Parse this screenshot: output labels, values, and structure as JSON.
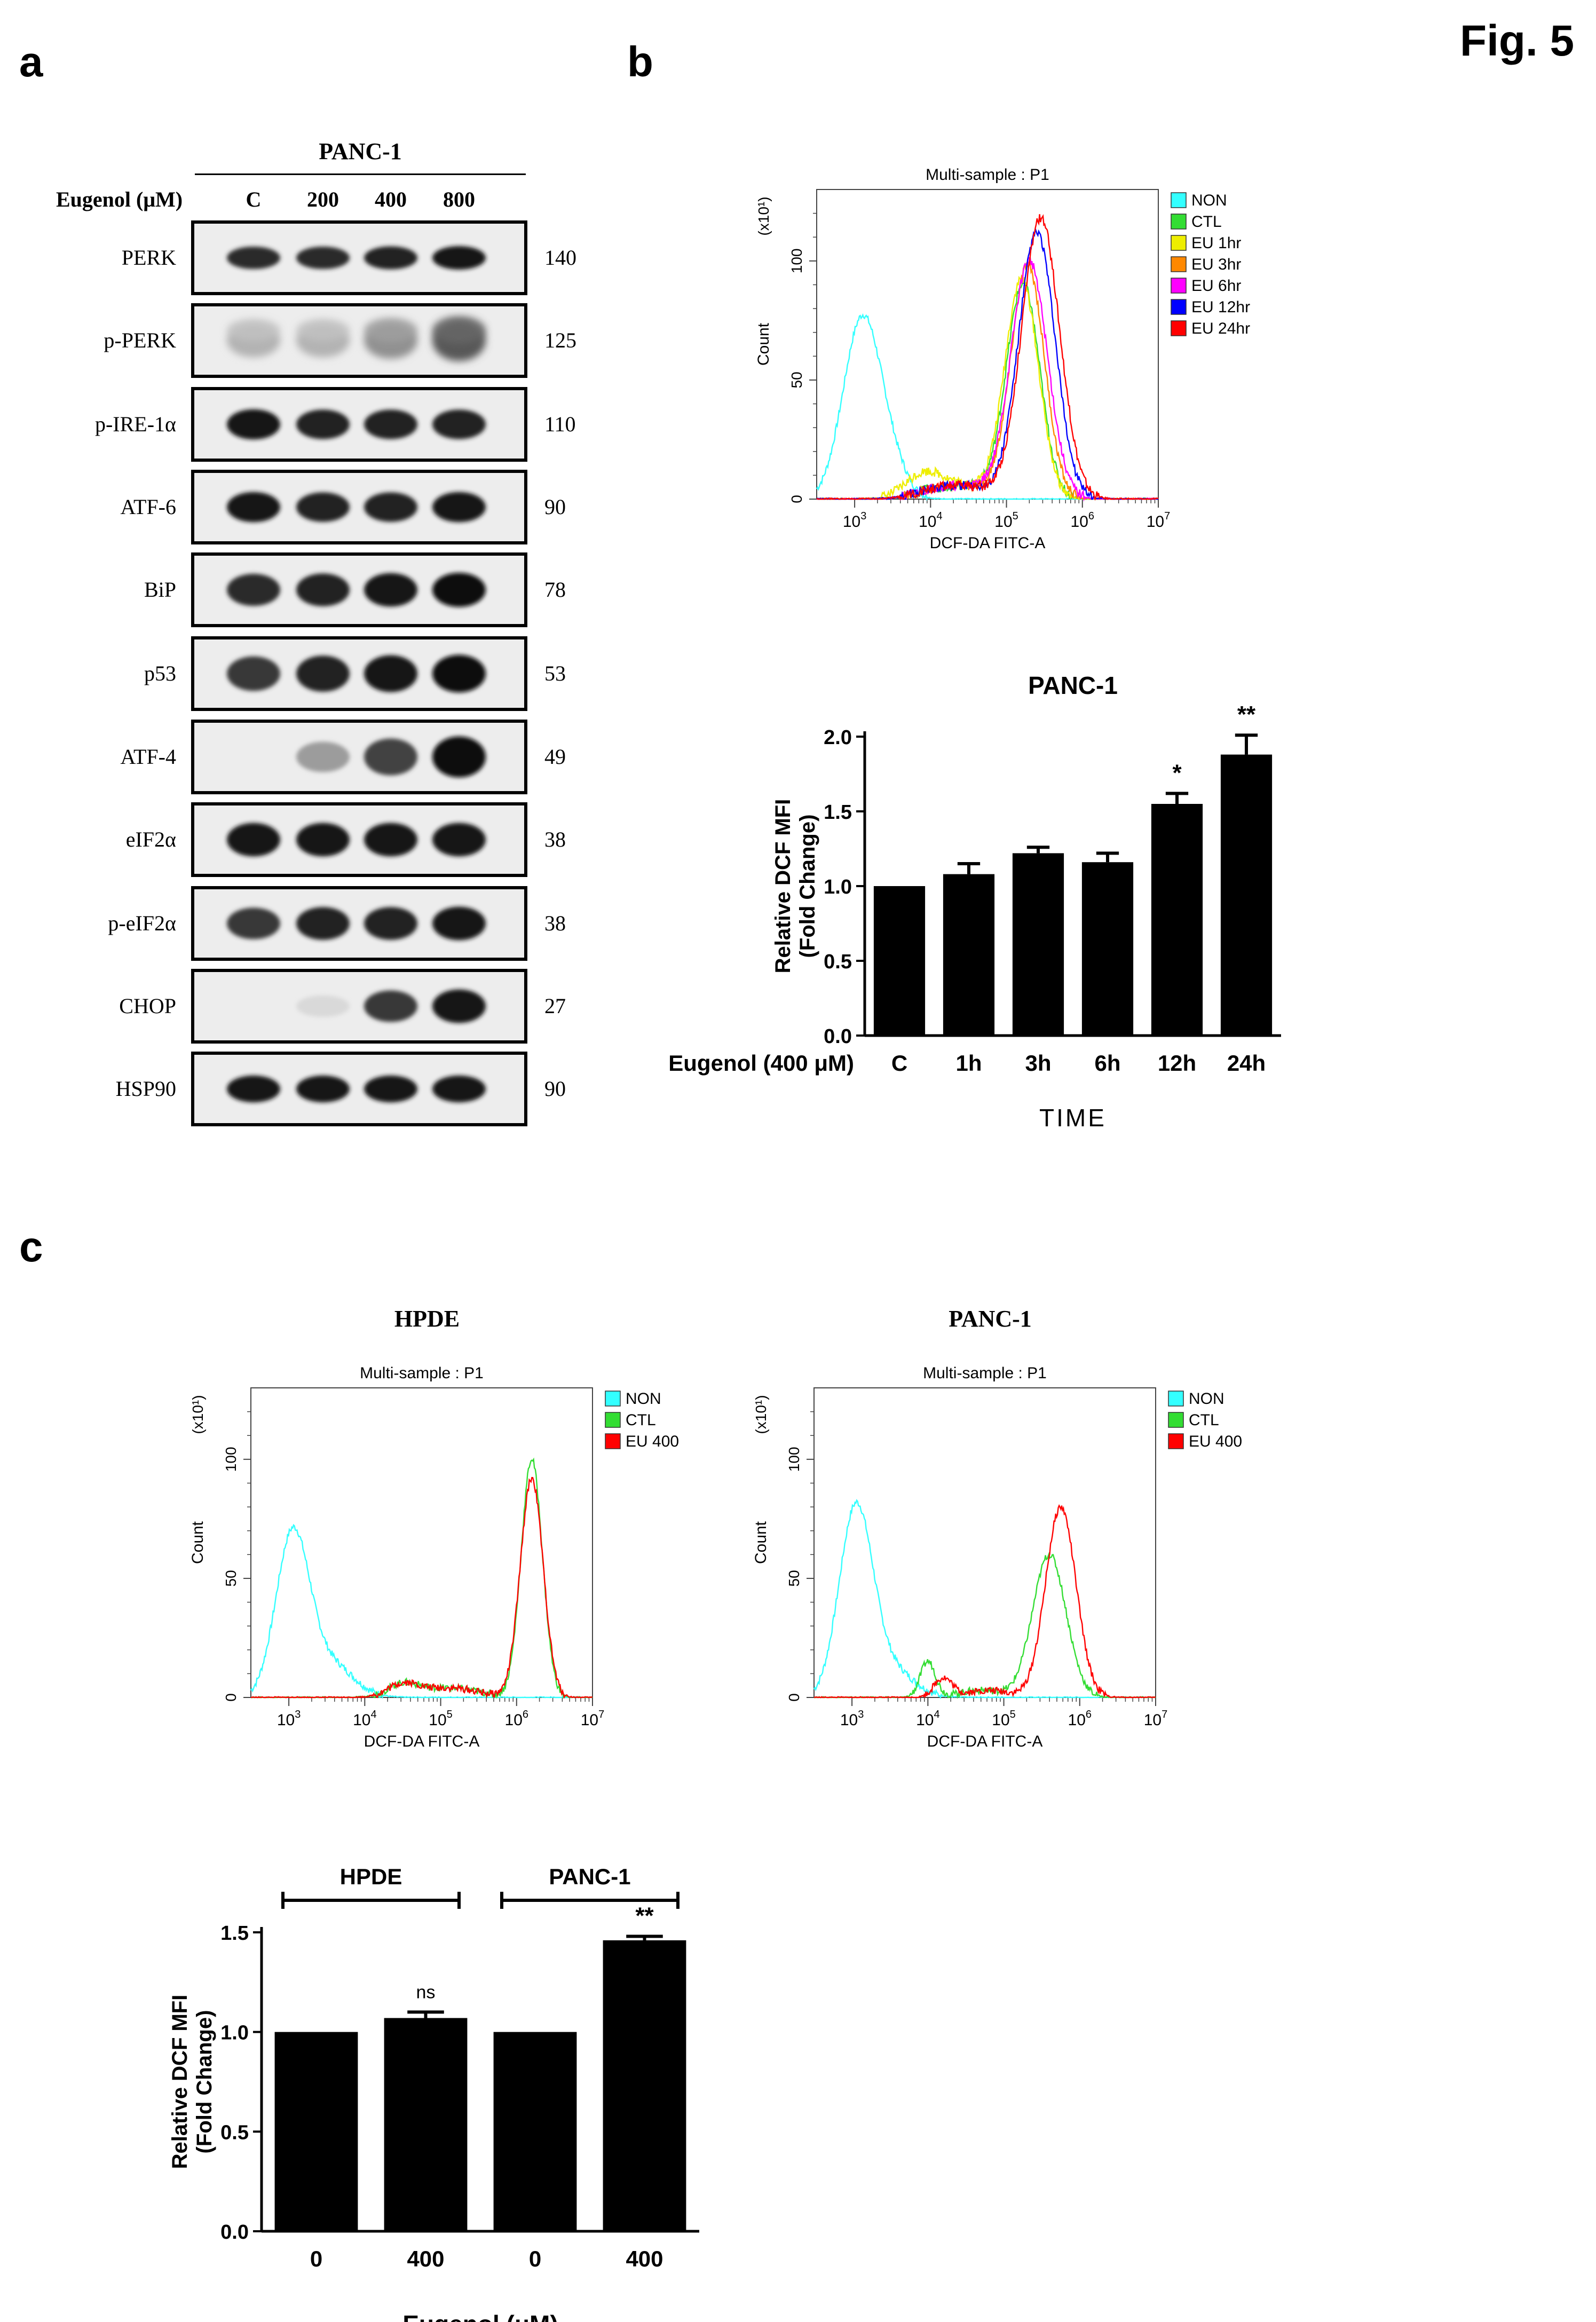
{
  "figure_label": "Fig. 5",
  "panels": {
    "a": "a",
    "b": "b",
    "c": "c"
  },
  "western": {
    "cell_line": "PANC-1",
    "treatment_label": "Eugenol (μM)",
    "lanes": [
      "C",
      "200",
      "400",
      "800"
    ],
    "rows": [
      {
        "name": "PERK",
        "mw": "140",
        "intensity": [
          0.85,
          0.85,
          0.9,
          0.95
        ],
        "thick": 0.35
      },
      {
        "name": "p-PERK",
        "mw": "125",
        "intensity": [
          0.25,
          0.25,
          0.4,
          0.65
        ],
        "thick": 0.7,
        "smear": true
      },
      {
        "name": "p-IRE-1α",
        "mw": "110",
        "intensity": [
          0.95,
          0.9,
          0.9,
          0.9
        ],
        "thick": 0.45
      },
      {
        "name": "ATF-6",
        "mw": "90",
        "intensity": [
          0.95,
          0.9,
          0.9,
          0.95
        ],
        "thick": 0.45
      },
      {
        "name": "BiP",
        "mw": "78",
        "intensity": [
          0.85,
          0.9,
          0.95,
          1.0
        ],
        "thick": 0.5
      },
      {
        "name": "p53",
        "mw": "53",
        "intensity": [
          0.8,
          0.9,
          0.95,
          1.0
        ],
        "thick": 0.55
      },
      {
        "name": "ATF-4",
        "mw": "49",
        "intensity": [
          0.0,
          0.35,
          0.75,
          1.0
        ],
        "thick": 0.6
      },
      {
        "name": "eIF2α",
        "mw": "38",
        "intensity": [
          0.95,
          0.95,
          0.95,
          0.95
        ],
        "thick": 0.5
      },
      {
        "name": "p-eIF2α",
        "mw": "38",
        "intensity": [
          0.8,
          0.9,
          0.9,
          0.95
        ],
        "thick": 0.5
      },
      {
        "name": "CHOP",
        "mw": "27",
        "intensity": [
          0.0,
          0.08,
          0.8,
          0.95
        ],
        "thick": 0.5
      },
      {
        "name": "HSP90",
        "mw": "90",
        "intensity": [
          0.95,
          0.95,
          0.95,
          0.95
        ],
        "thick": 0.4
      }
    ]
  },
  "flow_b": {
    "title": "Multi-sample : P1",
    "ylabel": "Count",
    "xlabel": "DCF-DA FITC-A",
    "y_multiplier": "(x10¹)",
    "yticks": [
      "0",
      "50",
      "100"
    ],
    "legend": [
      {
        "name": "NON",
        "color": "#33ffff"
      },
      {
        "name": "CTL",
        "color": "#33dd33"
      },
      {
        "name": "EU 1hr",
        "color": "#eeee00"
      },
      {
        "name": "EU 3hr",
        "color": "#ff8800"
      },
      {
        "name": "EU 6hr",
        "color": "#ff00ff"
      },
      {
        "name": "EU 12hr",
        "color": "#0000ff"
      },
      {
        "name": "EU 24hr",
        "color": "#ff0000"
      }
    ]
  },
  "flow_c_hpde": {
    "heading": "HPDE",
    "title": "Multi-sample : P1",
    "ylabel": "Count",
    "xlabel": "DCF-DA FITC-A",
    "y_multiplier": "(x10¹)",
    "yticks": [
      "0",
      "50",
      "100"
    ],
    "legend": [
      {
        "name": "NON",
        "color": "#33ffff"
      },
      {
        "name": "CTL",
        "color": "#33dd33"
      },
      {
        "name": "EU 400",
        "color": "#ff0000"
      }
    ]
  },
  "flow_c_panc": {
    "heading": "PANC-1",
    "title": "Multi-sample : P1",
    "ylabel": "Count",
    "xlabel": "DCF-DA FITC-A",
    "y_multiplier": "(x10¹)",
    "yticks": [
      "0",
      "50",
      "100"
    ],
    "legend": [
      {
        "name": "NON",
        "color": "#33ffff"
      },
      {
        "name": "CTL",
        "color": "#33dd33"
      },
      {
        "name": "EU 400",
        "color": "#ff0000"
      }
    ]
  },
  "chart_data": [
    {
      "type": "bar",
      "title": "PANC-1",
      "ylabel": "Relative DCF MFI\n(Fold Change)",
      "xlabel": "TIME",
      "treatment_label": "Eugenol (400 μM)",
      "categories": [
        "C",
        "1h",
        "3h",
        "6h",
        "12h",
        "24h"
      ],
      "values": [
        1.0,
        1.08,
        1.22,
        1.16,
        1.55,
        1.88
      ],
      "errors": [
        0.0,
        0.07,
        0.04,
        0.06,
        0.07,
        0.13
      ],
      "significance": [
        "",
        "",
        "",
        "",
        "*",
        "**"
      ],
      "ylim": [
        0,
        2.0
      ],
      "yticks": [
        "0.0",
        "0.5",
        "1.0",
        "1.5",
        "2.0"
      ]
    },
    {
      "type": "bar",
      "title": "",
      "ylabel": "Relative DCF MFI\n(Fold Change)",
      "xlabel": "Eugenol (μM)",
      "groups": [
        "HPDE",
        "PANC-1"
      ],
      "categories": [
        "0",
        "400",
        "0",
        "400"
      ],
      "values": [
        1.0,
        1.07,
        1.0,
        1.46
      ],
      "errors": [
        0.0,
        0.03,
        0.0,
        0.02
      ],
      "significance": [
        "",
        "ns",
        "",
        "**"
      ],
      "ylim": [
        0,
        1.5
      ],
      "yticks": [
        "0.0",
        "0.5",
        "1.0",
        "1.5"
      ]
    }
  ]
}
